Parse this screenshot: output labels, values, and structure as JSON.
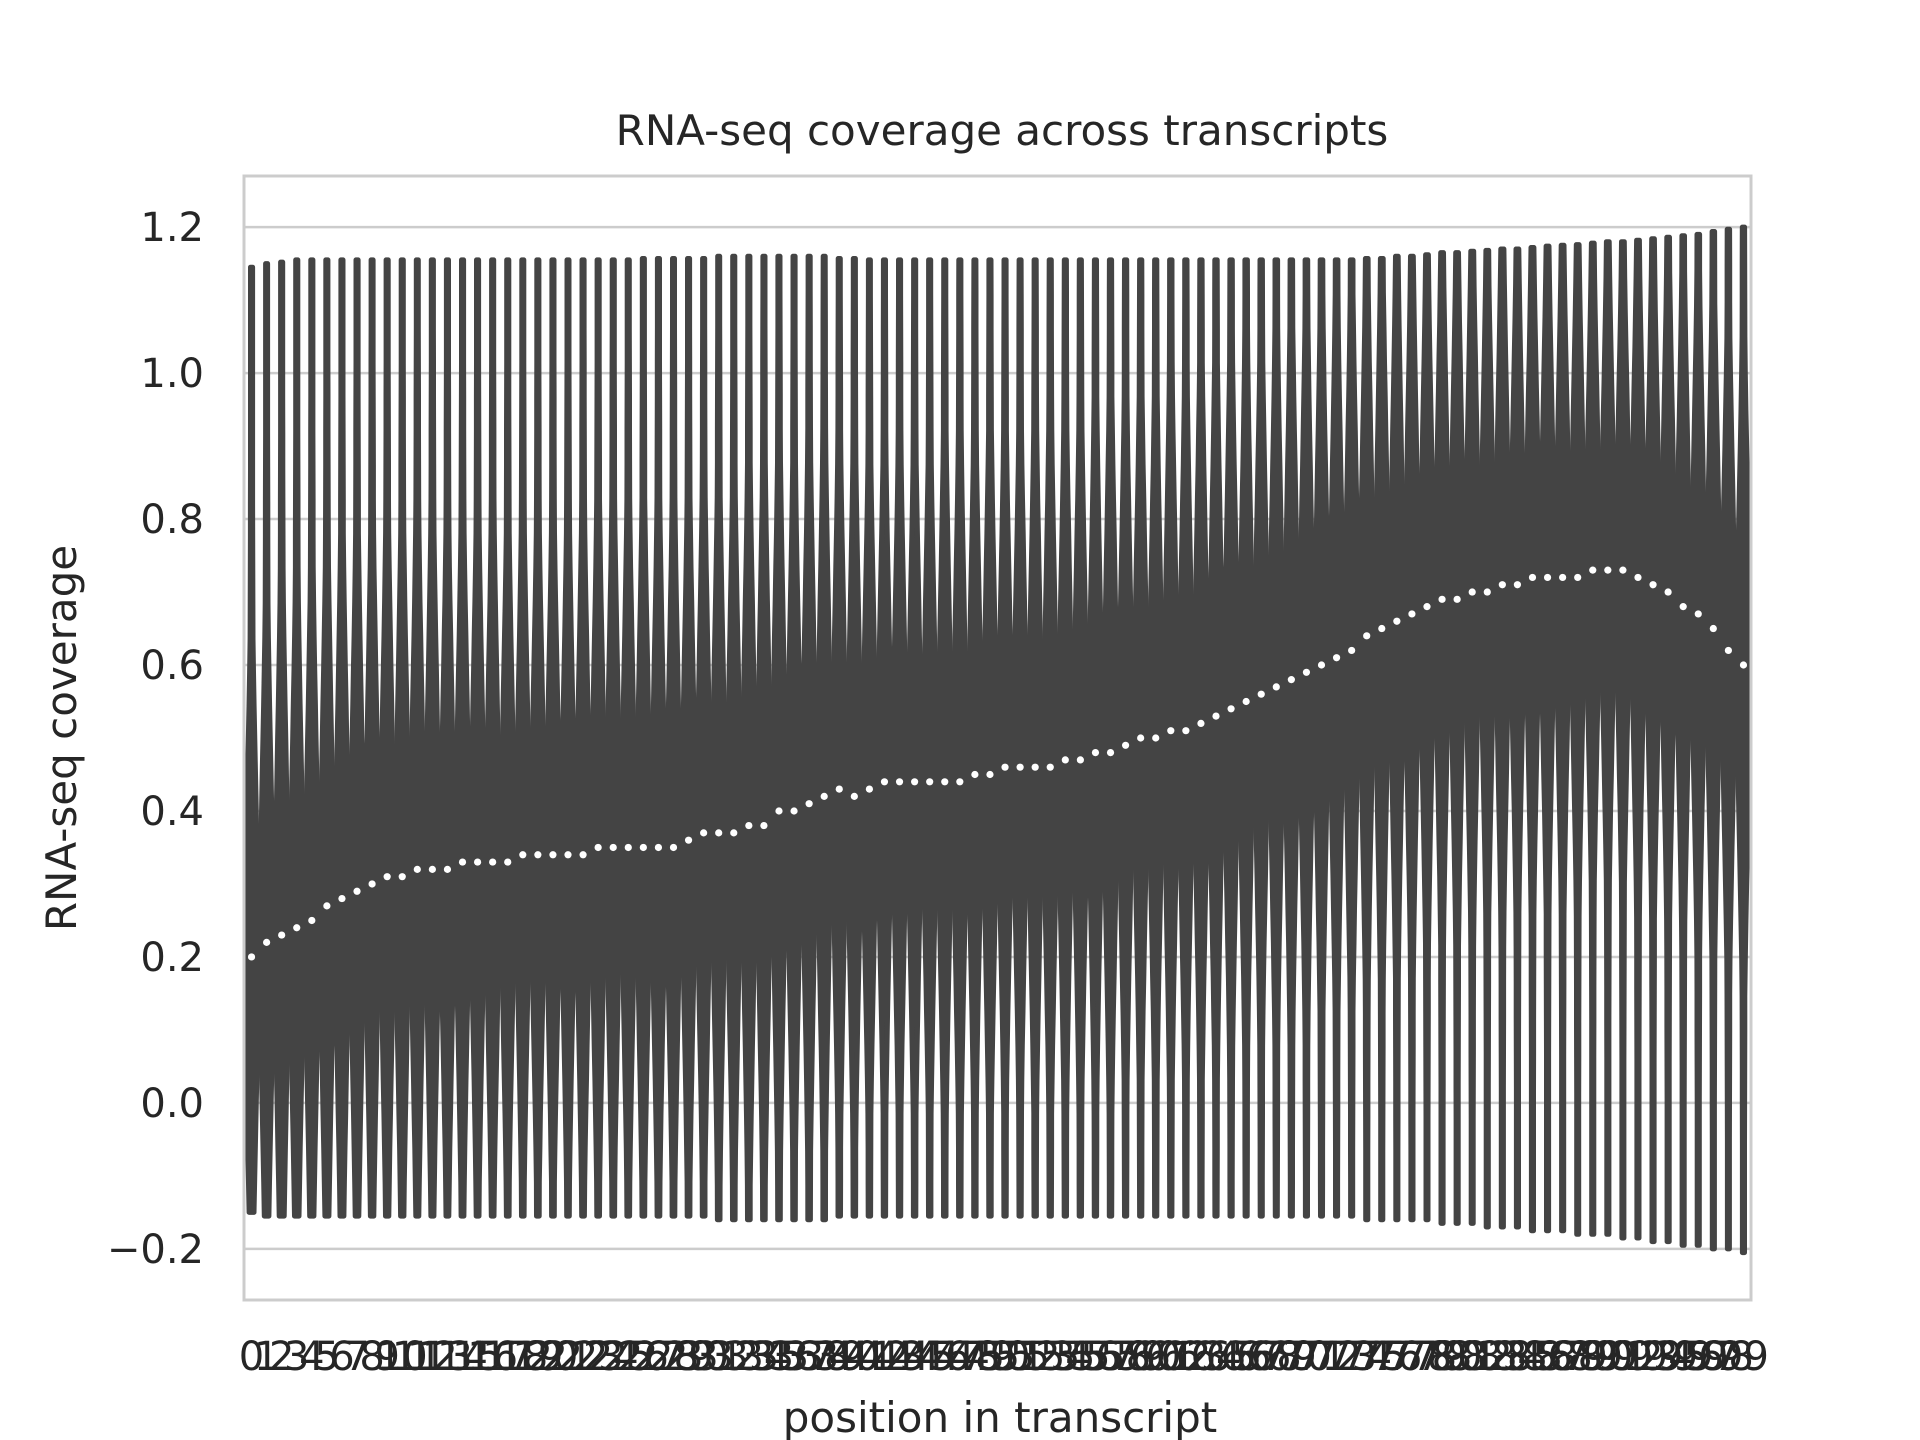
{
  "chart_data": {
    "type": "violin",
    "title": "RNA-seq coverage across transcripts",
    "xlabel": "position in transcript",
    "ylabel": "RNA-seq coverage",
    "ylim": [
      -0.27,
      1.27
    ],
    "yticks": [
      -0.2,
      0.0,
      0.2,
      0.4,
      0.6,
      0.8,
      1.0,
      1.2
    ],
    "ytick_labels": [
      "−0.2",
      "0.0",
      "0.2",
      "0.4",
      "0.6",
      "0.8",
      "1.0",
      "1.2"
    ],
    "grid": true,
    "x_positions": [
      0,
      1,
      2,
      3,
      4,
      5,
      6,
      7,
      8,
      9,
      10,
      11,
      12,
      13,
      14,
      15,
      16,
      17,
      18,
      19,
      20,
      21,
      22,
      23,
      24,
      25,
      26,
      27,
      28,
      29,
      30,
      31,
      32,
      33,
      34,
      35,
      36,
      37,
      38,
      39,
      40,
      41,
      42,
      43,
      44,
      45,
      46,
      47,
      48,
      49,
      50,
      51,
      52,
      53,
      54,
      55,
      56,
      57,
      58,
      59,
      60,
      61,
      62,
      63,
      64,
      65,
      66,
      67,
      68,
      69,
      70,
      71,
      72,
      73,
      74,
      75,
      76,
      77,
      78,
      79,
      80,
      81,
      82,
      83,
      84,
      85,
      86,
      87,
      88,
      89,
      90,
      91,
      92,
      93,
      94,
      95,
      96,
      97,
      98,
      99
    ],
    "median_coverage": [
      0.2,
      0.22,
      0.23,
      0.24,
      0.25,
      0.27,
      0.28,
      0.29,
      0.3,
      0.31,
      0.31,
      0.32,
      0.32,
      0.32,
      0.33,
      0.33,
      0.33,
      0.33,
      0.34,
      0.34,
      0.34,
      0.34,
      0.34,
      0.35,
      0.35,
      0.35,
      0.35,
      0.35,
      0.35,
      0.36,
      0.37,
      0.37,
      0.37,
      0.38,
      0.38,
      0.4,
      0.4,
      0.41,
      0.42,
      0.43,
      0.42,
      0.43,
      0.44,
      0.44,
      0.44,
      0.44,
      0.44,
      0.44,
      0.45,
      0.45,
      0.46,
      0.46,
      0.46,
      0.46,
      0.47,
      0.47,
      0.48,
      0.48,
      0.49,
      0.5,
      0.5,
      0.51,
      0.51,
      0.52,
      0.53,
      0.54,
      0.55,
      0.56,
      0.57,
      0.58,
      0.59,
      0.6,
      0.61,
      0.62,
      0.64,
      0.65,
      0.66,
      0.67,
      0.68,
      0.69,
      0.69,
      0.7,
      0.7,
      0.71,
      0.71,
      0.72,
      0.72,
      0.72,
      0.72,
      0.73,
      0.73,
      0.73,
      0.72,
      0.71,
      0.7,
      0.68,
      0.67,
      0.65,
      0.62,
      0.6
    ],
    "q1_coverage": [
      0.05,
      0.06,
      0.06,
      0.08,
      0.1,
      0.11,
      0.12,
      0.13,
      0.14,
      0.15,
      0.16,
      0.16,
      0.17,
      0.18,
      0.18,
      0.18,
      0.18,
      0.19,
      0.19,
      0.19,
      0.19,
      0.19,
      0.19,
      0.19,
      0.2,
      0.2,
      0.2,
      0.21,
      0.22,
      0.22,
      0.23,
      0.23,
      0.23,
      0.23,
      0.24,
      0.25,
      0.26,
      0.26,
      0.27,
      0.28,
      0.28,
      0.29,
      0.3,
      0.3,
      0.3,
      0.3,
      0.3,
      0.3,
      0.31,
      0.31,
      0.32,
      0.32,
      0.32,
      0.32,
      0.32,
      0.33,
      0.33,
      0.33,
      0.34,
      0.35,
      0.35,
      0.35,
      0.36,
      0.36,
      0.37,
      0.38,
      0.39,
      0.4,
      0.4,
      0.41,
      0.42,
      0.43,
      0.44,
      0.45,
      0.46,
      0.47,
      0.48,
      0.49,
      0.5,
      0.51,
      0.52,
      0.53,
      0.54,
      0.54,
      0.55,
      0.56,
      0.56,
      0.57,
      0.57,
      0.58,
      0.58,
      0.58,
      0.57,
      0.56,
      0.55,
      0.53,
      0.51,
      0.49,
      0.47,
      0.44
    ],
    "q3_coverage": [
      0.33,
      0.35,
      0.37,
      0.38,
      0.4,
      0.42,
      0.43,
      0.44,
      0.45,
      0.46,
      0.47,
      0.47,
      0.48,
      0.48,
      0.48,
      0.48,
      0.48,
      0.48,
      0.48,
      0.48,
      0.48,
      0.48,
      0.49,
      0.49,
      0.5,
      0.5,
      0.5,
      0.51,
      0.52,
      0.52,
      0.53,
      0.53,
      0.53,
      0.54,
      0.55,
      0.56,
      0.56,
      0.57,
      0.58,
      0.58,
      0.58,
      0.58,
      0.59,
      0.59,
      0.59,
      0.59,
      0.6,
      0.6,
      0.6,
      0.61,
      0.61,
      0.61,
      0.62,
      0.62,
      0.62,
      0.63,
      0.63,
      0.64,
      0.64,
      0.65,
      0.65,
      0.66,
      0.66,
      0.67,
      0.68,
      0.69,
      0.7,
      0.7,
      0.71,
      0.72,
      0.73,
      0.74,
      0.75,
      0.76,
      0.77,
      0.78,
      0.79,
      0.8,
      0.8,
      0.81,
      0.82,
      0.83,
      0.83,
      0.84,
      0.84,
      0.85,
      0.85,
      0.86,
      0.86,
      0.86,
      0.86,
      0.86,
      0.86,
      0.85,
      0.84,
      0.82,
      0.8,
      0.78,
      0.75,
      0.72
    ],
    "min_coverage": [
      -0.15,
      -0.155,
      -0.155,
      -0.155,
      -0.155,
      -0.155,
      -0.155,
      -0.155,
      -0.155,
      -0.155,
      -0.155,
      -0.155,
      -0.155,
      -0.155,
      -0.155,
      -0.155,
      -0.155,
      -0.155,
      -0.155,
      -0.155,
      -0.155,
      -0.155,
      -0.155,
      -0.155,
      -0.155,
      -0.155,
      -0.155,
      -0.155,
      -0.155,
      -0.155,
      -0.155,
      -0.16,
      -0.16,
      -0.16,
      -0.16,
      -0.16,
      -0.16,
      -0.16,
      -0.16,
      -0.155,
      -0.155,
      -0.155,
      -0.155,
      -0.155,
      -0.155,
      -0.155,
      -0.155,
      -0.155,
      -0.155,
      -0.155,
      -0.155,
      -0.155,
      -0.155,
      -0.155,
      -0.155,
      -0.155,
      -0.155,
      -0.155,
      -0.155,
      -0.155,
      -0.155,
      -0.155,
      -0.155,
      -0.155,
      -0.155,
      -0.155,
      -0.155,
      -0.155,
      -0.155,
      -0.155,
      -0.155,
      -0.155,
      -0.155,
      -0.155,
      -0.16,
      -0.16,
      -0.16,
      -0.16,
      -0.16,
      -0.165,
      -0.165,
      -0.165,
      -0.17,
      -0.17,
      -0.17,
      -0.175,
      -0.175,
      -0.175,
      -0.18,
      -0.18,
      -0.18,
      -0.185,
      -0.185,
      -0.19,
      -0.19,
      -0.195,
      -0.195,
      -0.2,
      -0.2,
      -0.205
    ],
    "max_coverage": [
      1.145,
      1.15,
      1.152,
      1.155,
      1.155,
      1.155,
      1.155,
      1.155,
      1.155,
      1.155,
      1.155,
      1.155,
      1.155,
      1.155,
      1.155,
      1.155,
      1.155,
      1.155,
      1.155,
      1.155,
      1.155,
      1.155,
      1.155,
      1.155,
      1.155,
      1.155,
      1.157,
      1.157,
      1.157,
      1.157,
      1.157,
      1.16,
      1.16,
      1.16,
      1.16,
      1.16,
      1.16,
      1.16,
      1.16,
      1.157,
      1.157,
      1.155,
      1.155,
      1.155,
      1.155,
      1.155,
      1.155,
      1.155,
      1.155,
      1.155,
      1.155,
      1.155,
      1.155,
      1.155,
      1.155,
      1.155,
      1.155,
      1.155,
      1.155,
      1.155,
      1.155,
      1.155,
      1.155,
      1.155,
      1.155,
      1.155,
      1.155,
      1.155,
      1.155,
      1.155,
      1.155,
      1.155,
      1.155,
      1.155,
      1.157,
      1.157,
      1.16,
      1.16,
      1.162,
      1.165,
      1.165,
      1.167,
      1.168,
      1.17,
      1.17,
      1.172,
      1.174,
      1.175,
      1.176,
      1.178,
      1.18,
      1.18,
      1.182,
      1.184,
      1.186,
      1.188,
      1.19,
      1.194,
      1.197,
      1.2
    ],
    "colors": {
      "violin_fill": "#444444",
      "median_dots": "#ffffff",
      "grid": "#cccccc",
      "frame": "#cccccc",
      "text": "#262626"
    }
  }
}
